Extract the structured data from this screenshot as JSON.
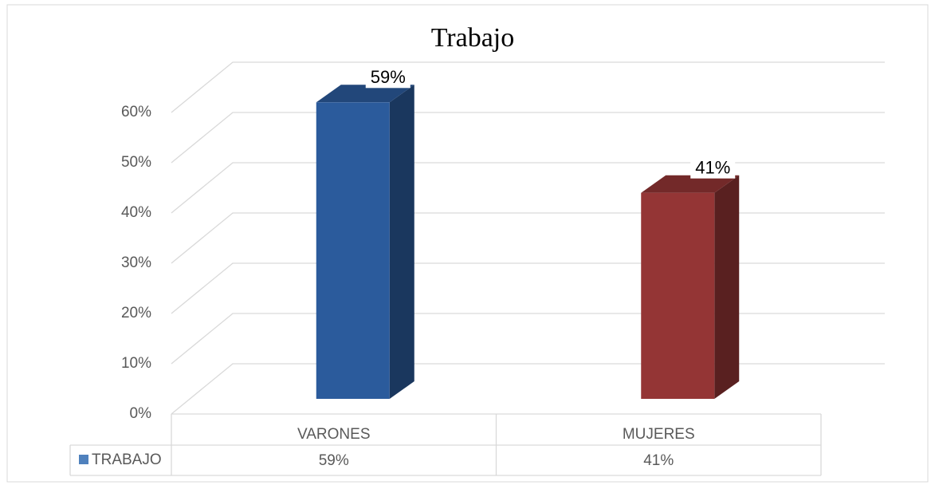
{
  "chart_data": {
    "type": "bar3d",
    "title": "Trabajo",
    "categories": [
      "VARONES",
      "MUJERES"
    ],
    "series": [
      {
        "name": "TRABAJO",
        "color": "#4f81bd",
        "colors": [
          "#2b5b9c",
          "#943535"
        ],
        "values": [
          59,
          41
        ],
        "value_labels": [
          "59%",
          "41%"
        ]
      }
    ],
    "ylim": [
      0,
      60
    ],
    "yticks": [
      {
        "value": 0,
        "label": "0%"
      },
      {
        "value": 10,
        "label": "10%"
      },
      {
        "value": 20,
        "label": "20%"
      },
      {
        "value": 30,
        "label": "30%"
      },
      {
        "value": 40,
        "label": "40%"
      },
      {
        "value": 50,
        "label": "50%"
      },
      {
        "value": 60,
        "label": "60%"
      }
    ],
    "grid": true,
    "data_table": true
  }
}
